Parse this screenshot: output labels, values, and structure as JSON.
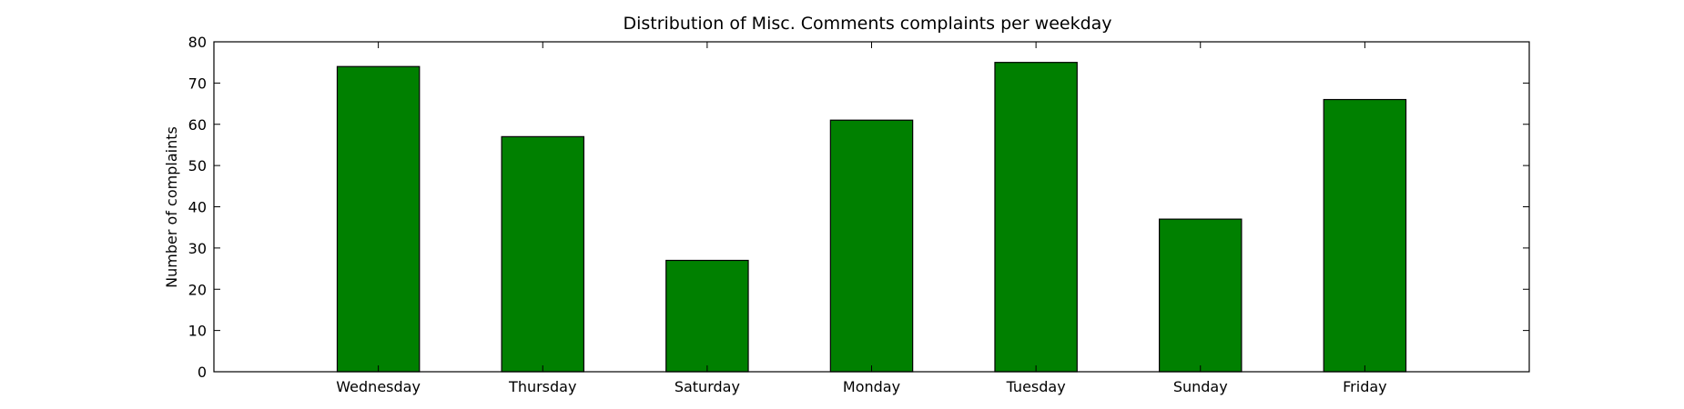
{
  "chart_data": {
    "type": "bar",
    "title": "Distribution of  Misc. Comments complaints per weekday",
    "xlabel": "",
    "ylabel": "Number of complaints",
    "categories": [
      "Wednesday",
      "Thursday",
      "Saturday",
      "Monday",
      "Tuesday",
      "Sunday",
      "Friday"
    ],
    "values": [
      74,
      57,
      27,
      61,
      75,
      37,
      66
    ],
    "ylim": [
      0,
      80
    ],
    "yticks": [
      0,
      10,
      20,
      30,
      40,
      50,
      60,
      70,
      80
    ],
    "grid": false,
    "legend": "none",
    "colors": {
      "bar": "#008000",
      "bar_edge": "#000000",
      "axes": "#000000"
    }
  }
}
